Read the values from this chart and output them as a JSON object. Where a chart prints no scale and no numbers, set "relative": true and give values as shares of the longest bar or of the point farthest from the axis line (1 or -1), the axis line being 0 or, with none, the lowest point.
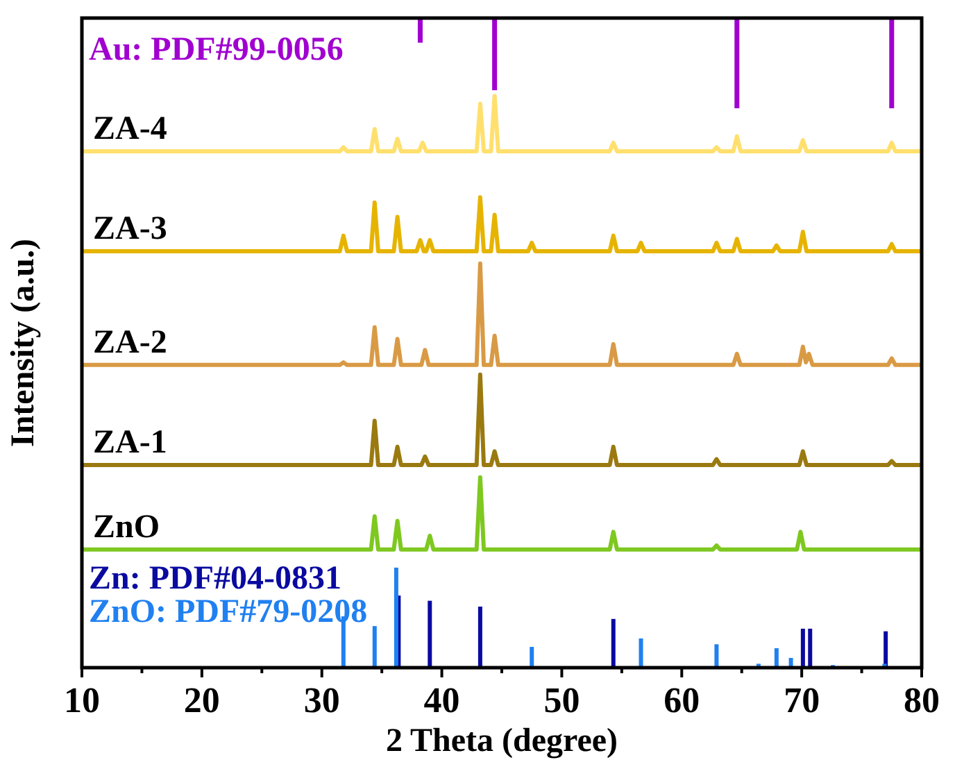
{
  "chart_data": {
    "type": "line",
    "relative": true,
    "xlabel": "2 Theta (degree)",
    "ylabel": "Intensity (a.u.)",
    "xlim": [
      10,
      80
    ],
    "xticks": [
      10,
      {
        "value": 15,
        "label": null
      },
      20,
      {
        "value": 25,
        "label": null
      },
      30,
      {
        "value": 35,
        "label": null
      },
      40,
      {
        "value": 45,
        "label": null
      },
      50,
      {
        "value": 55,
        "label": null
      },
      60,
      {
        "value": 65,
        "label": null
      },
      70,
      {
        "value": 75,
        "label": null
      },
      80
    ],
    "legend": "left",
    "grid": false,
    "marker": "none",
    "line_style": "solid",
    "series": [
      {
        "name": "Au: PDF#99-0056",
        "color": "#a000d0",
        "x": [
          38.2,
          38.2,
          null,
          44.4,
          44.4,
          null,
          64.6,
          64.6,
          null,
          77.5,
          77.5
        ],
        "values": [
          0.962,
          1,
          null,
          0.889,
          1,
          null,
          0.861,
          1,
          null,
          0.861,
          1
        ]
      },
      {
        "name": "ZA-4",
        "color": "#ffe06e",
        "x": [
          10,
          31.5,
          31.8,
          32.1,
          34.1,
          34.4,
          34.7,
          36.0,
          36.3,
          36.6,
          38.1,
          38.4,
          38.7,
          42.9,
          43.2,
          43.5,
          44.1,
          44.4,
          44.7,
          54.0,
          54.3,
          54.6,
          62.6,
          62.9,
          63.2,
          64.3,
          64.6,
          64.9,
          69.8,
          70.1,
          70.4,
          77.2,
          77.5,
          77.8,
          80
        ],
        "values": [
          0.795,
          0.795,
          0.801,
          0.795,
          0.795,
          0.829,
          0.795,
          0.795,
          0.814,
          0.795,
          0.795,
          0.808,
          0.795,
          0.795,
          0.868,
          0.795,
          0.795,
          0.88,
          0.795,
          0.795,
          0.808,
          0.795,
          0.795,
          0.801,
          0.795,
          0.795,
          0.818,
          0.795,
          0.795,
          0.812,
          0.795,
          0.795,
          0.808,
          0.795,
          0.795
        ]
      },
      {
        "name": "ZA-3",
        "color": "#e6b400",
        "x": [
          10,
          31.5,
          31.8,
          32.1,
          34.1,
          34.4,
          34.7,
          36.0,
          36.3,
          36.6,
          37.9,
          38.2,
          38.5,
          38.7,
          39.0,
          39.3,
          42.9,
          43.2,
          43.5,
          44.1,
          44.4,
          44.7,
          47.2,
          47.5,
          47.8,
          54.0,
          54.3,
          54.6,
          56.3,
          56.6,
          56.9,
          62.6,
          62.9,
          63.2,
          64.3,
          64.6,
          64.9,
          67.6,
          67.9,
          68.2,
          69.8,
          70.1,
          70.4,
          77.2,
          77.5,
          77.8,
          80
        ],
        "values": [
          0.641,
          0.641,
          0.665,
          0.641,
          0.641,
          0.716,
          0.641,
          0.641,
          0.694,
          0.641,
          0.641,
          0.658,
          0.641,
          0.641,
          0.658,
          0.641,
          0.641,
          0.724,
          0.641,
          0.641,
          0.697,
          0.641,
          0.641,
          0.654,
          0.641,
          0.641,
          0.665,
          0.641,
          0.641,
          0.654,
          0.641,
          0.641,
          0.654,
          0.641,
          0.641,
          0.66,
          0.641,
          0.641,
          0.65,
          0.641,
          0.641,
          0.671,
          0.641,
          0.641,
          0.652,
          0.641,
          0.641
        ]
      },
      {
        "name": "ZA-2",
        "color": "#d99a45",
        "x": [
          10,
          31.5,
          31.8,
          32.1,
          34.1,
          34.4,
          34.7,
          36.0,
          36.3,
          36.6,
          38.3,
          38.6,
          38.9,
          42.9,
          43.2,
          43.5,
          44.1,
          44.4,
          44.7,
          54.0,
          54.3,
          54.6,
          64.3,
          64.6,
          64.9,
          69.8,
          70.1,
          70.35,
          70.6,
          70.9,
          77.2,
          77.5,
          77.8,
          80
        ],
        "values": [
          0.466,
          0.466,
          0.47,
          0.466,
          0.466,
          0.524,
          0.466,
          0.466,
          0.506,
          0.466,
          0.466,
          0.489,
          0.466,
          0.466,
          0.622,
          0.466,
          0.466,
          0.511,
          0.466,
          0.466,
          0.498,
          0.466,
          0.466,
          0.483,
          0.466,
          0.466,
          0.494,
          0.47,
          0.483,
          0.466,
          0.466,
          0.476,
          0.466,
          0.466
        ]
      },
      {
        "name": "ZA-1",
        "color": "#9a7a10",
        "x": [
          10,
          34.1,
          34.4,
          34.7,
          36.0,
          36.3,
          36.6,
          38.3,
          38.6,
          38.9,
          42.9,
          43.2,
          43.5,
          44.1,
          44.4,
          44.7,
          54.0,
          54.3,
          54.6,
          62.6,
          62.9,
          63.2,
          69.8,
          70.1,
          70.4,
          77.2,
          77.5,
          77.8,
          80
        ],
        "values": [
          0.312,
          0.312,
          0.38,
          0.312,
          0.312,
          0.34,
          0.312,
          0.312,
          0.325,
          0.312,
          0.312,
          0.451,
          0.312,
          0.312,
          0.333,
          0.312,
          0.312,
          0.34,
          0.312,
          0.312,
          0.321,
          0.312,
          0.312,
          0.333,
          0.312,
          0.312,
          0.318,
          0.312,
          0.312
        ]
      },
      {
        "name": "ZnO",
        "color": "#7ec820",
        "x": [
          10,
          34.1,
          34.4,
          34.7,
          36.0,
          36.3,
          36.6,
          38.7,
          39.0,
          39.3,
          42.9,
          43.2,
          43.5,
          54.0,
          54.3,
          54.6,
          62.6,
          62.9,
          63.2,
          69.6,
          69.9,
          70.2,
          80
        ],
        "values": [
          0.182,
          0.182,
          0.233,
          0.182,
          0.182,
          0.226,
          0.182,
          0.182,
          0.203,
          0.182,
          0.182,
          0.293,
          0.182,
          0.182,
          0.209,
          0.182,
          0.182,
          0.188,
          0.182,
          0.182,
          0.209,
          0.182,
          0.182
        ]
      },
      {
        "name": "Zn: PDF#04-0831",
        "type": "bar",
        "color": "#0a0aa0",
        "x": [
          36.4,
          39.0,
          43.2,
          54.3,
          70.1,
          70.7,
          77.0
        ],
        "values": [
          0.111,
          0.103,
          0.094,
          0.075,
          0.06,
          0.06,
          0.056
        ]
      },
      {
        "name": "ZnO: PDF#79-0208",
        "type": "bar",
        "color": "#2080f0",
        "x": [
          31.8,
          34.4,
          36.2,
          47.5,
          56.6,
          62.9,
          66.4,
          67.9,
          69.1,
          72.6,
          76.9
        ],
        "values": [
          0.079,
          0.064,
          0.154,
          0.032,
          0.045,
          0.036,
          0.006,
          0.03,
          0.015,
          0.004,
          0.006
        ]
      }
    ]
  }
}
